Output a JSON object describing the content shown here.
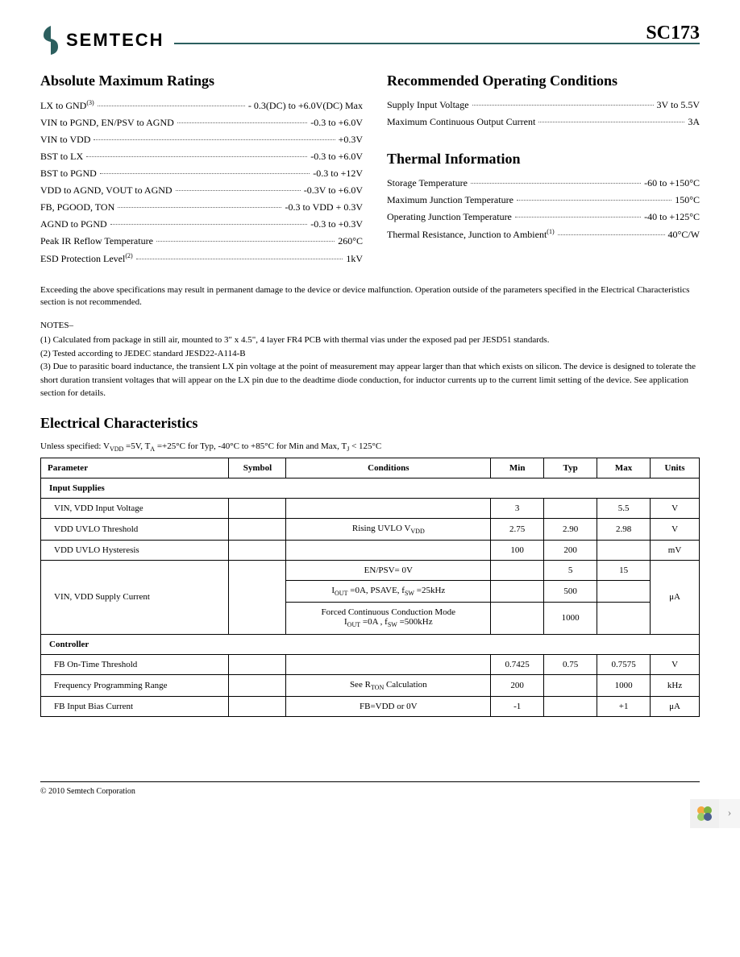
{
  "header": {
    "logo_text": "SEMTECH",
    "part_number": "SC173",
    "brand_color": "#2c5f5f"
  },
  "abs_max": {
    "title": "Absolute Maximum Ratings",
    "lines": [
      {
        "label": "LX to GND",
        "sup": "(3)",
        "value": "- 0.3(DC) to +6.0V(DC) Max"
      },
      {
        "label": "VIN to PGND, EN/PSV to AGND",
        "sup": "",
        "value": "-0.3 to +6.0V"
      },
      {
        "label": "VIN to VDD",
        "sup": "",
        "value": "+0.3V"
      },
      {
        "label": "BST to LX",
        "sup": "",
        "value": "-0.3 to +6.0V"
      },
      {
        "label": "BST to PGND",
        "sup": "",
        "value": "-0.3 to +12V"
      },
      {
        "label": "VDD to AGND, VOUT to AGND",
        "sup": "",
        "value": "-0.3V to +6.0V"
      },
      {
        "label": "FB, PGOOD, TON",
        "sup": "",
        "value": "-0.3 to VDD + 0.3V"
      },
      {
        "label": "AGND to PGND",
        "sup": "",
        "value": "-0.3 to +0.3V"
      },
      {
        "label": "Peak IR Reflow Temperature",
        "sup": "",
        "value": "260°C"
      },
      {
        "label": "ESD Protection Level",
        "sup": "(2)",
        "value": "1kV"
      }
    ]
  },
  "rec_op": {
    "title": "Recommended Operating Conditions",
    "lines": [
      {
        "label": "Supply Input Voltage",
        "value": "3V to 5.5V"
      },
      {
        "label": "Maximum Continuous Output Current",
        "value": "3A"
      }
    ]
  },
  "thermal": {
    "title": "Thermal Information",
    "lines": [
      {
        "label": "Storage Temperature",
        "sup": "",
        "value": "-60 to +150°C"
      },
      {
        "label": "Maximum Junction Temperature",
        "sup": "",
        "value": "150°C"
      },
      {
        "label": "Operating Junction Temperature",
        "sup": "",
        "value": "-40 to +125°C"
      },
      {
        "label": "Thermal Resistance, Junction to Ambient",
        "sup": "(1)",
        "value": "40°C/W"
      }
    ]
  },
  "disclaimer": "Exceeding the above specifications may result in permanent damage to the device or device malfunction.  Operation outside of the parameters specified in the Electrical Characteristics section is not recommended.",
  "notes": {
    "title": "NOTES–",
    "items": [
      "(1)  Calculated from package in still air, mounted to 3\" x 4.5\", 4 layer FR4 PCB with thermal vias under the exposed pad per JESD51 standards.",
      "(2)   Tested according to JEDEC standard JESD22-A114-B",
      "(3)  Due to parasitic board inductance, the transient LX pin voltage at the point of measurement may appear larger than that which exists on silicon. The device is designed to tolerate the short duration transient voltages that will appear on the LX pin due to the deadtime diode conduction, for inductor currents up to the current limit setting of the device. See application section for details."
    ]
  },
  "electrical": {
    "title": "Electrical Characteristics",
    "subtitle_parts": {
      "p1": "Unless specified: V",
      "sub1": "VDD",
      "p2": " =5V, T",
      "sub2": "A",
      "p3": " =+25°C for Typ, -40°C to +85°C for Min and Max,  T",
      "sub3": "J",
      "p4": " < 125°C"
    },
    "headers": {
      "parameter": "Parameter",
      "symbol": "Symbol",
      "conditions": "Conditions",
      "min": "Min",
      "typ": "Typ",
      "max": "Max",
      "units": "Units"
    },
    "group1": "Input Supplies",
    "rows1": [
      {
        "param": "VIN, VDD Input Voltage",
        "symbol": "",
        "cond": "",
        "min": "3",
        "typ": "",
        "max": "5.5",
        "units": "V"
      },
      {
        "param": "VDD UVLO Threshold",
        "symbol": "",
        "cond": "Rising UVLO V",
        "cond_sub": "VDD",
        "min": "2.75",
        "typ": "2.90",
        "max": "2.98",
        "units": "V"
      },
      {
        "param": "VDD UVLO Hysteresis",
        "symbol": "",
        "cond": "",
        "min": "100",
        "typ": "200",
        "max": "",
        "units": "mV"
      }
    ],
    "supply_current": {
      "param": "VIN, VDD Supply Current",
      "units": "μA",
      "r1": {
        "cond": "EN/PSV= 0V",
        "min": "",
        "typ": "5",
        "max": "15"
      },
      "r2": {
        "cond_p1": "I",
        "cond_sub1": "OUT",
        "cond_p2": " =0A, PSAVE, f",
        "cond_sub2": "SW",
        "cond_p3": " =25kHz",
        "min": "",
        "typ": "500",
        "max": ""
      },
      "r3": {
        "cond_line1": "Forced Continuous Conduction Mode",
        "cond_p1": "I",
        "cond_sub1": "OUT",
        "cond_p2": " =0A , f",
        "cond_sub2": "SW",
        "cond_p3": " =500kHz",
        "min": "",
        "typ": "1000",
        "max": ""
      }
    },
    "group2": "Controller",
    "rows2": [
      {
        "param": "FB On-Time Threshold",
        "symbol": "",
        "cond": "",
        "min": "0.7425",
        "typ": "0.75",
        "max": "0.7575",
        "units": "V"
      },
      {
        "param": "Frequency Programming Range",
        "symbol": "",
        "cond_p1": "See R",
        "cond_sub": "TON",
        "cond_p2": " Calculation",
        "min": "200",
        "typ": "",
        "max": "1000",
        "units": "kHz"
      },
      {
        "param": "FB Input  Bias Current",
        "symbol": "",
        "cond": "FB=VDD or 0V",
        "min": "-1",
        "typ": "",
        "max": "+1",
        "units": "μA"
      }
    ]
  },
  "footer": {
    "copyright": "© 2010 Semtech Corporation"
  },
  "table_style": {
    "border_color": "#000000",
    "font_size": 11
  }
}
